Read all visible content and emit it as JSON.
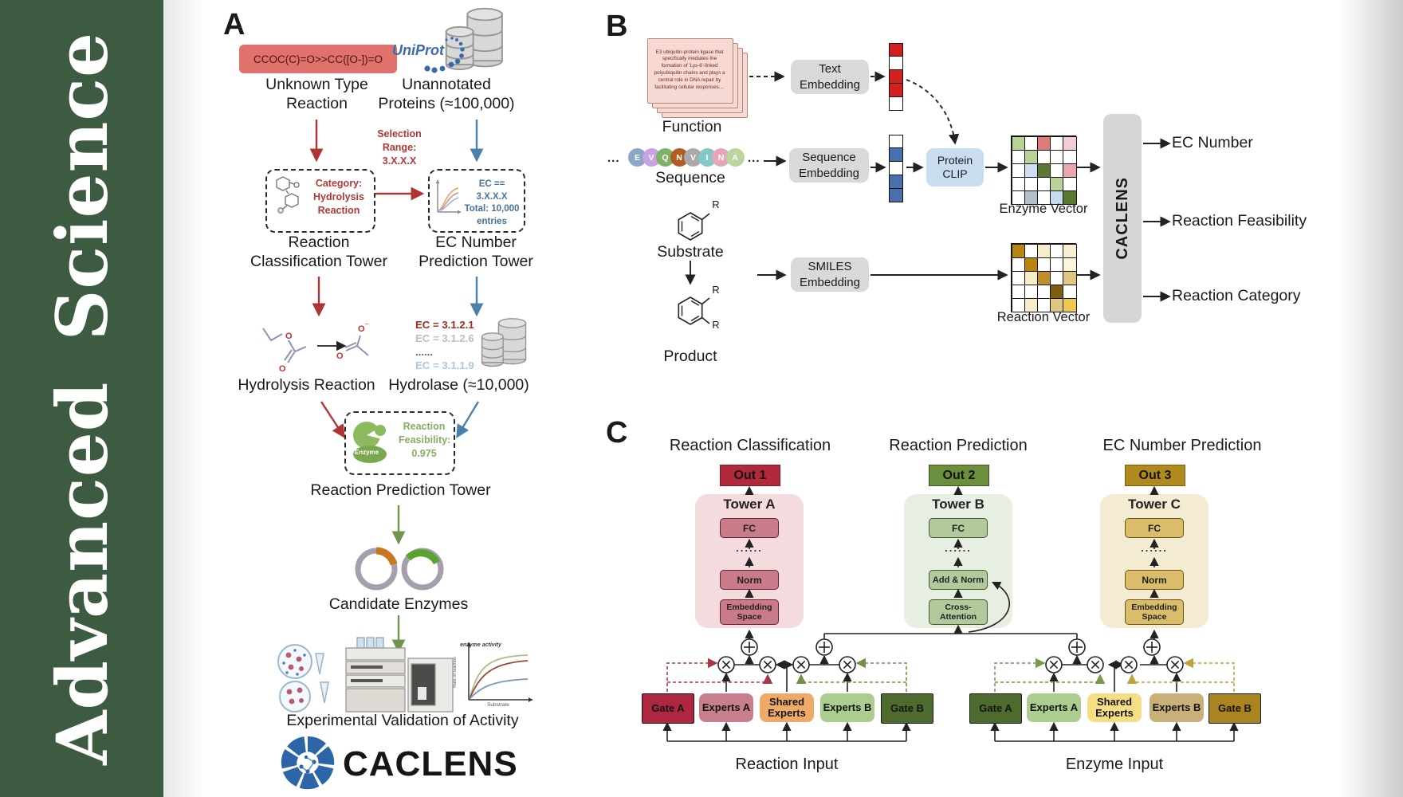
{
  "sidebar": {
    "journal": "Advanced Science",
    "bg_color": "#3d5b41"
  },
  "colors": {
    "arrow_red": "#b03434",
    "arrow_blue": "#4a7fae",
    "arrow_green": "#70944a",
    "gate_dashed_red": "#a83848",
    "gate_dashed_olive": "#728f44",
    "gate_dashed_green": "#7a9a4a",
    "gate_dashed_gold": "#bfa23c",
    "out1": "#b02a3c",
    "out2": "#6b8f3d",
    "out3": "#b18a1e",
    "smiles_box": "#e0716c",
    "protein_clip": "#c9dcf0",
    "embedding_box": "#d9d9d9"
  },
  "panelA": {
    "label": "A",
    "smiles": "CCOC(C)=O>>CC([O-])=O",
    "unknown_reaction": "Unknown Type\nReaction",
    "uniprot": "UniProt",
    "unannotated": "Unannotated\nProteins (≈100,000)",
    "selection_range": "Selection\nRange:\n3.X.X.X",
    "category_box": "Category:\nHydrolysis\nReaction",
    "ec_box": "EC == 3.X.X.X\nTotal: 10,000\nentries",
    "classification_tower": "Reaction\nClassification Tower",
    "ec_tower": "EC Number\nPrediction Tower",
    "hydrolysis": "Hydrolysis Reaction",
    "ec_list": [
      {
        "text": "EC = 3.1.2.1",
        "color": "#9e2a22"
      },
      {
        "text": "EC = 3.1.2.6",
        "color": "#b9bec7"
      },
      {
        "text": "......",
        "color": "#5f5f5f"
      },
      {
        "text": "EC = 3.1.1.9",
        "color": "#a9c7e2"
      }
    ],
    "hydrolase": "Hydrolase (≈10,000)",
    "enzyme_badge": "Enzyme",
    "feasibility": "Reaction\nFeasibility:\n0.975",
    "prediction_tower": "Reaction Prediction Tower",
    "candidates": "Candidate Enzymes",
    "validation": "Experimental Validation of Activity",
    "logo_text": "CACLENS",
    "activity_plot": {
      "ylabel": "Rate of reaction",
      "xlabel": "Substrate",
      "annotation": "enzyme activity"
    }
  },
  "panelB": {
    "label": "B",
    "function_text": "E3 ubiquitin-protein ligase that specifically mediates the formation of 'Lys-6'-linked polyubiquitin chains and plays a central role in DNA repair by facilitating cellular responses....",
    "function_label": "Function",
    "ellipsis": "...",
    "sequence": [
      {
        "letter": "E",
        "color": "#8ba7c7"
      },
      {
        "letter": "V",
        "color": "#c7a3e3"
      },
      {
        "letter": "Q",
        "color": "#7cb364"
      },
      {
        "letter": "N",
        "color": "#b25b22"
      },
      {
        "letter": "V",
        "color": "#a9a9a9"
      },
      {
        "letter": "I",
        "color": "#83c7c7"
      },
      {
        "letter": "N",
        "color": "#e7a6b8"
      },
      {
        "letter": "A",
        "color": "#b9d69c"
      }
    ],
    "sequence_label": "Sequence",
    "substrate_label": "Substrate",
    "product_label": "Product",
    "r_label": "R",
    "text_embedding": "Text\nEmbedding",
    "sequence_embedding": "Sequence\nEmbedding",
    "smiles_embedding": "SMILES\nEmbedding",
    "protein_clip": "Protein\nCLIP",
    "enzyme_vector_label": "Enzyme Vector",
    "reaction_vector_label": "Reaction Vector",
    "caclens": "CACLENS",
    "outputs": [
      "EC Number",
      "Reaction Feasibility",
      "Reaction Category"
    ],
    "text_vector": [
      "#d2201f",
      "#ffffff",
      "#d2201f",
      "#d2201f",
      "#ffffff"
    ],
    "seq_vector": [
      "#ffffff",
      "#4a6fad",
      "#ffffff",
      "#4a6fad",
      "#4a6fad"
    ],
    "enzyme_vector": [
      [
        "#b7d39a",
        "#ffffff",
        "#dd7a7a",
        "#ffffff",
        "#f2cdd4"
      ],
      [
        "#ffffff",
        "#b7d39a",
        "#ffffff",
        "#ffffff",
        "#ffffff"
      ],
      [
        "#ffffff",
        "#cfdff2",
        "#5a7a34",
        "#ffffff",
        "#e9a8ae"
      ],
      [
        "#ffffff",
        "#ffffff",
        "#ffffff",
        "#b7d39a",
        "#ffffff"
      ],
      [
        "#ffffff",
        "#b4bfca",
        "#ffffff",
        "#c9daee",
        "#5a7a34"
      ]
    ],
    "reaction_vector": [
      [
        "#b8860f",
        "#ffffff",
        "#f6ecca",
        "#ffffff",
        "#f8efd2"
      ],
      [
        "#ffffff",
        "#b8860f",
        "#ffffff",
        "#ffffff",
        "#fbf5dd"
      ],
      [
        "#ffffff",
        "#f6ecca",
        "#c0912a",
        "#ffffff",
        "#dfc683"
      ],
      [
        "#ffffff",
        "#ffffff",
        "#ffffff",
        "#7c5d12",
        "#ffffff"
      ],
      [
        "#ffffff",
        "#f6ecca",
        "#ffffff",
        "#dfc683",
        "#ecca52"
      ]
    ]
  },
  "panelC": {
    "label": "C",
    "titles": [
      "Reaction Classification",
      "Reaction Prediction",
      "EC Number Prediction"
    ],
    "outs": [
      "Out 1",
      "Out 2",
      "Out 3"
    ],
    "tower_names": [
      "Tower A",
      "Tower B",
      "Tower C"
    ],
    "fc": "FC",
    "dots": "......",
    "norm": "Norm",
    "add_norm": "Add & Norm",
    "cross_attention": "Cross-\nAttention",
    "embedding_space": "Embedding\nSpace",
    "gate_a": "Gate A",
    "experts_a": "Experts A",
    "shared_experts": "Shared\nExperts",
    "experts_b": "Experts B",
    "gate_b": "Gate B",
    "reaction_input": "Reaction Input",
    "enzyme_input": "Enzyme Input"
  }
}
